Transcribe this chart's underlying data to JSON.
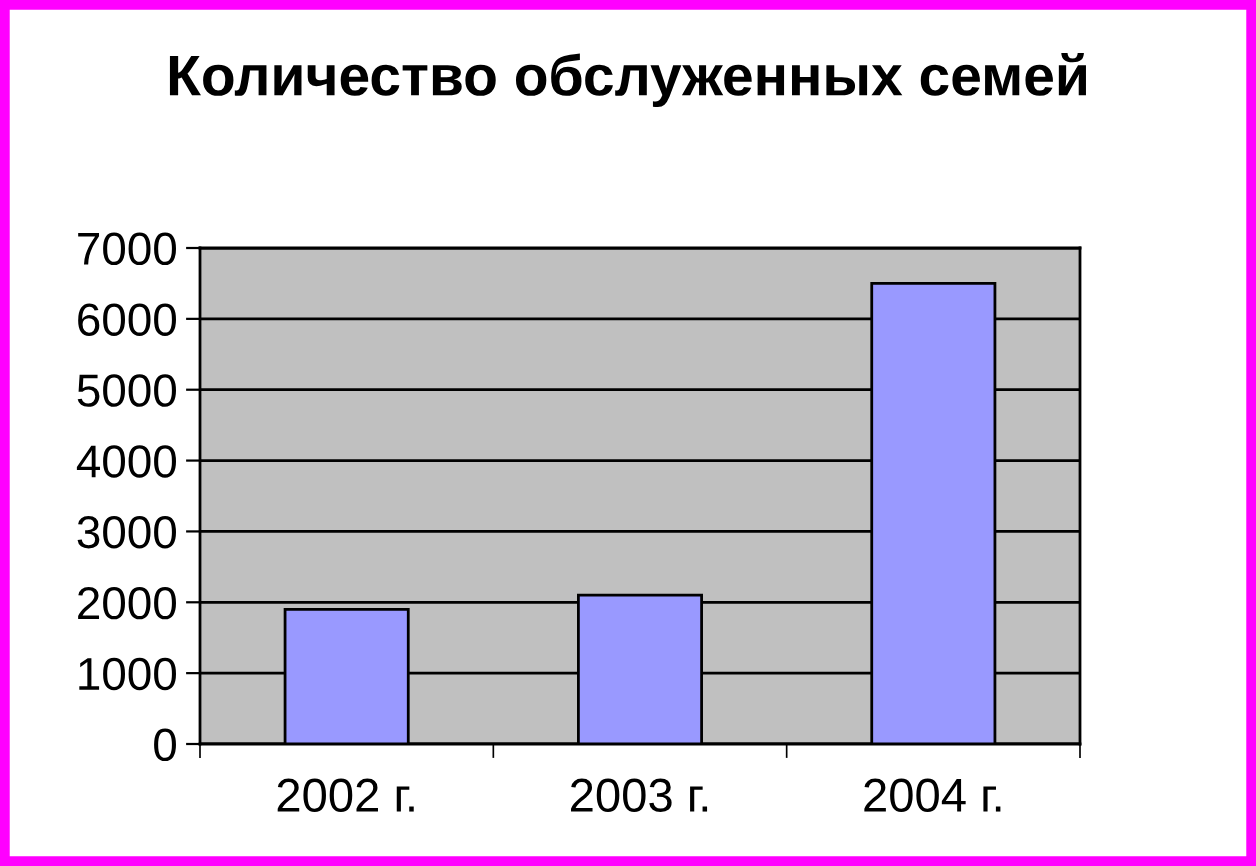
{
  "chart_data": {
    "type": "bar",
    "title": "Количество обслуженных семей",
    "categories": [
      "2002 г.",
      "2003 г.",
      "2004 г."
    ],
    "values": [
      1900,
      2100,
      6500
    ],
    "color": "#9999ff",
    "ylim": [
      0,
      7000
    ],
    "yticks": [
      0,
      1000,
      2000,
      3000,
      4000,
      5000,
      6000,
      7000
    ],
    "grid": "y"
  }
}
